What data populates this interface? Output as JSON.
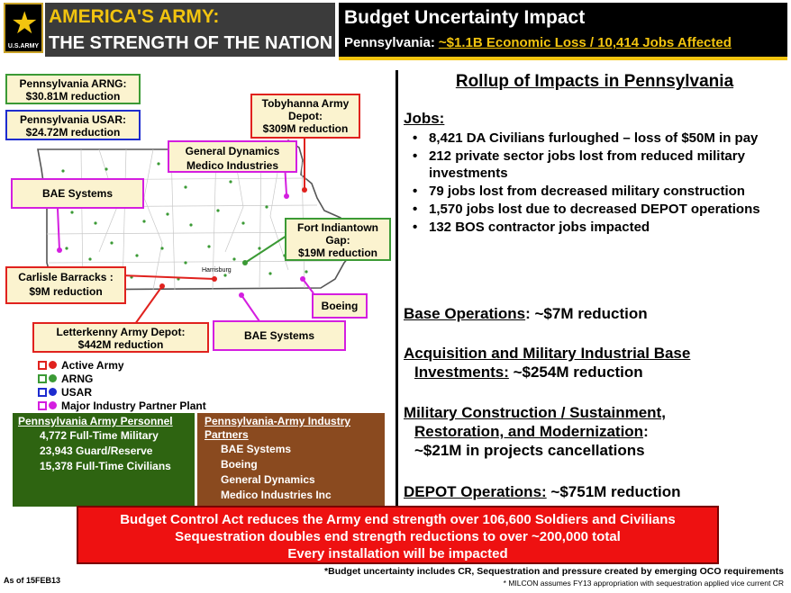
{
  "header": {
    "logo_text": "U.S.ARMY",
    "army_title_line1": "AMERICA'S ARMY:",
    "army_title_line2": "THE STRENGTH OF THE NATION",
    "budget_title": "Budget Uncertainty Impact",
    "budget_state": "Pennsylvania:",
    "budget_impact": "~$1.1B  Economic Loss / 10,414 Jobs Affected"
  },
  "map": {
    "callouts": {
      "arng": "Pennsylvania ARNG:\n$30.81M reduction",
      "usar": "Pennsylvania USAR:\n$24.72M reduction",
      "tobyhanna": "Tobyhanna Army\nDepot:\n$309M reduction",
      "general_dynamics": "General Dynamics\nMedico Industries",
      "bae_west": "BAE Systems",
      "fort_indiantown": "Fort Indiantown\nGap:\n$19M reduction",
      "carlisle": "Carlisle Barracks :\n$9M reduction",
      "boeing": "Boeing",
      "letterkenny": "Letterkenny Army Depot:\n$442M reduction",
      "bae_south": "BAE Systems"
    },
    "city_label": "Harrisburg"
  },
  "legend": [
    {
      "label": "Active Army",
      "color": "#e0221e"
    },
    {
      "label": "ARNG",
      "color": "#3b9a35"
    },
    {
      "label": "USAR",
      "color": "#1d2ccf"
    },
    {
      "label": "Major Industry Partner Plant",
      "color": "#d41ee0"
    }
  ],
  "personnel": {
    "title": "Pennsylvania Army Personnel",
    "lines": [
      "4,772 Full-Time Military",
      "23,943 Guard/Reserve",
      "15,378 Full-Time Civilians"
    ]
  },
  "partners": {
    "title": "Pennsylvania-Army Industry Partners",
    "lines": [
      "BAE Systems",
      "Boeing",
      "General Dynamics",
      "Medico Industries Inc"
    ]
  },
  "rollup": {
    "title": "Rollup of Impacts in Pennsylvania",
    "jobs_heading": "Jobs:",
    "jobs": [
      "8,421 DA Civilians furloughed – loss of $50M in pay",
      "212 private sector jobs lost from reduced military investments",
      "79 jobs lost from decreased military construction",
      "1,570 jobs lost due to decreased DEPOT operations",
      "132 BOS contractor jobs impacted"
    ],
    "base_ops_label": "Base Operations",
    "base_ops_value": ": ~$7M reduction",
    "acq_label_1": "Acquisition and Military Industrial Base",
    "acq_label_2": "Investments:",
    "acq_value": " ~$254M reduction",
    "milcon_label_1": "Military Construction / Sustainment,",
    "milcon_label_2": "Restoration, and Modernization",
    "milcon_colon": ":",
    "milcon_value": "~$21M in projects cancellations",
    "depot_label": "DEPOT Operations:",
    "depot_value": " ~$751M reduction"
  },
  "banner": {
    "line1": "Budget Control Act reduces the Army end strength over 106,600 Soldiers and Civilians",
    "line2": "Sequestration doubles end strength reductions to over ~200,000 total",
    "line3": "Every installation will be impacted"
  },
  "footer": {
    "as_of": "As of 15FEB13",
    "footnote1": "*Budget uncertainty includes CR, Sequestration and pressure created by emerging OCO requirements",
    "footnote2": "* MILCON assumes FY13 appropriation with sequestration applied vice current CR"
  }
}
